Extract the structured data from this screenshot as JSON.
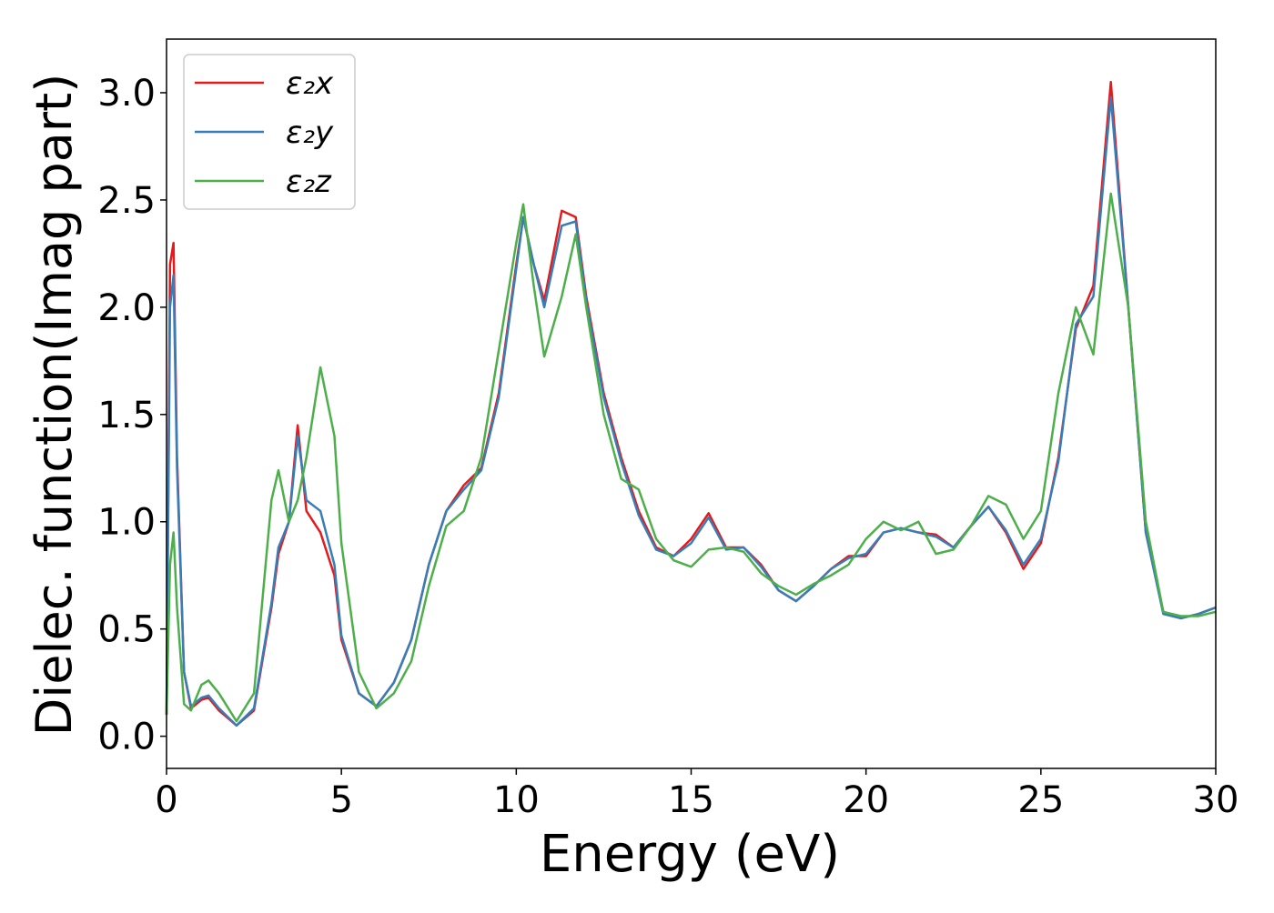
{
  "chart_data": {
    "type": "line",
    "xlabel": "Energy (eV)",
    "ylabel": "Dielec. function(Imag part)",
    "xlim": [
      0,
      30
    ],
    "ylim": [
      -0.15,
      3.25
    ],
    "xticks": [
      0,
      5,
      10,
      15,
      20,
      25,
      30
    ],
    "yticks": [
      {
        "value": 0,
        "label": "0.0"
      },
      0.5,
      {
        "value": 1,
        "label": "1.0"
      },
      1.5,
      {
        "value": 2,
        "label": "2.0"
      },
      2.5,
      {
        "value": 3,
        "label": "3.0"
      }
    ],
    "grid": false,
    "legend": "upper left",
    "x": [
      0,
      0.1,
      0.2,
      0.3,
      0.5,
      0.7,
      1.0,
      1.2,
      1.5,
      2.0,
      2.5,
      3.0,
      3.2,
      3.5,
      3.75,
      4.0,
      4.4,
      4.8,
      5.0,
      5.5,
      6.0,
      6.5,
      7.0,
      7.5,
      8.0,
      8.5,
      9.0,
      9.5,
      10.0,
      10.2,
      10.5,
      10.8,
      11.3,
      11.7,
      12.0,
      12.5,
      13.0,
      13.5,
      14.0,
      14.5,
      15.0,
      15.5,
      16.0,
      16.5,
      17.0,
      17.5,
      18.0,
      18.5,
      19.0,
      19.5,
      20.0,
      20.5,
      21.0,
      21.5,
      22.0,
      22.5,
      23.0,
      23.5,
      24.0,
      24.5,
      25.0,
      25.5,
      26.0,
      26.5,
      27.0,
      27.5,
      28.0,
      28.5,
      29.0,
      29.5,
      30.0
    ],
    "series": [
      {
        "name": "ε₂x",
        "color": "#e41a1c",
        "values": [
          0.1,
          2.2,
          2.3,
          1.3,
          0.3,
          0.13,
          0.17,
          0.18,
          0.12,
          0.05,
          0.12,
          0.6,
          0.85,
          1.0,
          1.45,
          1.05,
          0.95,
          0.75,
          0.45,
          0.2,
          0.14,
          0.25,
          0.45,
          0.8,
          1.05,
          1.17,
          1.25,
          1.6,
          2.2,
          2.42,
          2.2,
          2.03,
          2.45,
          2.42,
          2.05,
          1.6,
          1.3,
          1.05,
          0.88,
          0.84,
          0.92,
          1.04,
          0.88,
          0.88,
          0.8,
          0.68,
          0.63,
          0.7,
          0.78,
          0.84,
          0.84,
          0.95,
          0.97,
          0.95,
          0.94,
          0.88,
          0.98,
          1.07,
          0.95,
          0.78,
          0.9,
          1.3,
          1.9,
          2.1,
          3.05,
          2.0,
          0.95,
          0.58,
          0.55,
          0.57,
          0.6
        ]
      },
      {
        "name": "ε₂y",
        "color": "#377eb8",
        "values": [
          0.1,
          2.0,
          2.15,
          1.25,
          0.3,
          0.14,
          0.18,
          0.19,
          0.13,
          0.05,
          0.13,
          0.62,
          0.88,
          1.0,
          1.4,
          1.1,
          1.05,
          0.8,
          0.47,
          0.2,
          0.14,
          0.25,
          0.45,
          0.8,
          1.05,
          1.15,
          1.24,
          1.58,
          2.18,
          2.42,
          2.2,
          2.0,
          2.38,
          2.4,
          2.03,
          1.58,
          1.28,
          1.03,
          0.87,
          0.84,
          0.9,
          1.02,
          0.87,
          0.88,
          0.79,
          0.68,
          0.63,
          0.7,
          0.78,
          0.83,
          0.85,
          0.95,
          0.97,
          0.95,
          0.93,
          0.88,
          0.98,
          1.07,
          0.96,
          0.8,
          0.92,
          1.28,
          1.92,
          2.05,
          2.98,
          2.0,
          0.95,
          0.57,
          0.55,
          0.57,
          0.6
        ]
      },
      {
        "name": "ε₂z",
        "color": "#4daf4a",
        "values": [
          0.1,
          0.8,
          0.95,
          0.6,
          0.15,
          0.12,
          0.24,
          0.26,
          0.2,
          0.07,
          0.2,
          1.1,
          1.24,
          1.0,
          1.1,
          1.3,
          1.72,
          1.4,
          0.9,
          0.3,
          0.13,
          0.2,
          0.35,
          0.7,
          0.98,
          1.05,
          1.3,
          1.8,
          2.3,
          2.48,
          2.1,
          1.77,
          2.05,
          2.34,
          2.0,
          1.5,
          1.2,
          1.15,
          0.92,
          0.82,
          0.79,
          0.87,
          0.88,
          0.86,
          0.76,
          0.7,
          0.66,
          0.71,
          0.75,
          0.8,
          0.92,
          1.0,
          0.96,
          1.0,
          0.85,
          0.87,
          0.98,
          1.12,
          1.08,
          0.92,
          1.05,
          1.6,
          2.0,
          1.78,
          2.53,
          2.0,
          1.0,
          0.58,
          0.56,
          0.56,
          0.58
        ]
      }
    ]
  }
}
